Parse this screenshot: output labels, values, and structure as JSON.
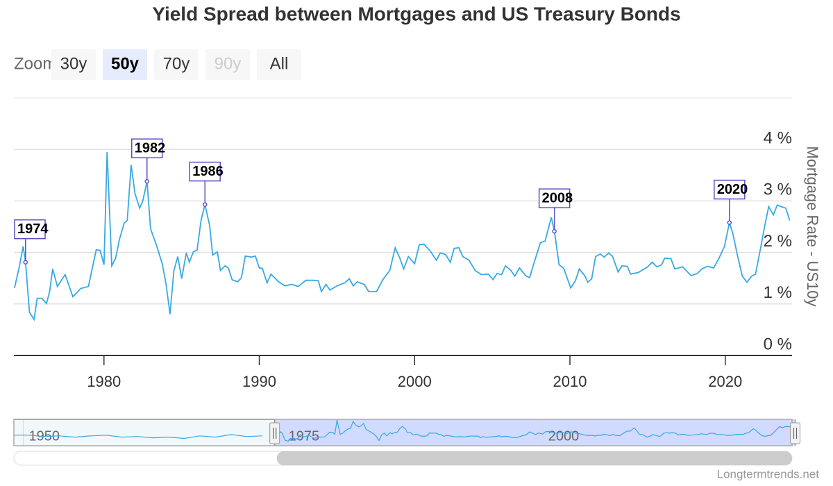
{
  "chart_data": {
    "type": "line",
    "title": "Yield Spread between Mortgages and US Treasury Bonds",
    "y_axis_label": "Mortgage Rate - US10y",
    "credit": "Longtermtrends.net",
    "color": "#38a9e4",
    "grid": true,
    "xlim": [
      1974.2,
      2024.3
    ],
    "xticks": [
      1980,
      1990,
      2000,
      2010,
      2020
    ],
    "ylim": [
      0,
      5
    ],
    "yticks": [
      {
        "value": 0,
        "label": "0 %"
      },
      {
        "value": 1,
        "label": "1 %"
      },
      {
        "value": 2,
        "label": "2 %"
      },
      {
        "value": 3,
        "label": "3 %"
      },
      {
        "value": 4,
        "label": "4 %"
      }
    ],
    "x": [
      1974.24,
      1974.55,
      1974.8,
      1974.95,
      1975.2,
      1975.5,
      1975.7,
      1976.0,
      1976.3,
      1976.5,
      1976.7,
      1977.0,
      1977.5,
      1978.0,
      1978.5,
      1979.0,
      1979.5,
      1979.75,
      1980.0,
      1980.2,
      1980.5,
      1980.75,
      1981.0,
      1981.3,
      1981.5,
      1981.75,
      1982.0,
      1982.3,
      1982.5,
      1982.77,
      1983.0,
      1983.4,
      1983.75,
      1984.0,
      1984.25,
      1984.5,
      1984.75,
      1985.0,
      1985.3,
      1985.5,
      1985.75,
      1986.0,
      1986.25,
      1986.5,
      1986.8,
      1987.0,
      1987.3,
      1987.5,
      1987.8,
      1988.0,
      1988.25,
      1988.6,
      1988.85,
      1989.1,
      1989.5,
      1989.75,
      1990.0,
      1990.2,
      1990.5,
      1990.75,
      1991.25,
      1991.65,
      1992.1,
      1992.5,
      1993.0,
      1993.5,
      1993.8,
      1994.0,
      1994.3,
      1994.55,
      1995.0,
      1995.5,
      1995.8,
      1996.05,
      1996.3,
      1996.75,
      1997.05,
      1997.55,
      1997.95,
      1998.4,
      1998.75,
      1999.05,
      1999.3,
      1999.6,
      2000.0,
      2000.3,
      2000.6,
      2001.0,
      2001.4,
      2001.65,
      2002.0,
      2002.3,
      2002.55,
      2002.85,
      2003.1,
      2003.5,
      2003.9,
      2004.3,
      2004.75,
      2005.05,
      2005.3,
      2005.6,
      2005.85,
      2006.2,
      2006.45,
      2006.75,
      2007.15,
      2007.4,
      2007.7,
      2008.1,
      2008.4,
      2008.8,
      2009.0,
      2009.3,
      2009.6,
      2010.05,
      2010.35,
      2010.6,
      2010.95,
      2011.15,
      2011.4,
      2011.65,
      2011.95,
      2012.2,
      2012.5,
      2012.75,
      2013.1,
      2013.35,
      2013.7,
      2013.9,
      2014.4,
      2015.0,
      2015.3,
      2015.6,
      2015.9,
      2016.1,
      2016.5,
      2016.75,
      2017.25,
      2017.8,
      2018.2,
      2018.5,
      2018.85,
      2019.25,
      2019.6,
      2019.95,
      2020.27,
      2020.5,
      2020.8,
      2021.1,
      2021.4,
      2021.7,
      2021.95,
      2022.3,
      2022.55,
      2022.8,
      2023.1,
      2023.35,
      2023.6,
      2023.9,
      2024.15
    ],
    "values": [
      1.31,
      1.72,
      2.12,
      1.81,
      0.84,
      0.7,
      1.11,
      1.11,
      1.01,
      1.24,
      1.68,
      1.34,
      1.57,
      1.14,
      1.3,
      1.34,
      2.05,
      2.04,
      1.76,
      3.95,
      1.74,
      1.89,
      2.26,
      2.57,
      2.62,
      3.7,
      3.14,
      2.86,
      3.0,
      3.38,
      2.46,
      2.12,
      1.78,
      1.38,
      0.8,
      1.65,
      1.92,
      1.49,
      1.99,
      1.81,
      2.01,
      2.05,
      2.62,
      2.93,
      2.53,
      1.95,
      2.01,
      1.65,
      1.74,
      1.7,
      1.47,
      1.43,
      1.51,
      1.93,
      1.91,
      1.93,
      1.7,
      1.69,
      1.41,
      1.58,
      1.43,
      1.35,
      1.38,
      1.34,
      1.46,
      1.46,
      1.45,
      1.24,
      1.38,
      1.27,
      1.35,
      1.41,
      1.49,
      1.35,
      1.43,
      1.38,
      1.24,
      1.24,
      1.47,
      1.65,
      2.09,
      1.89,
      1.68,
      1.92,
      1.78,
      2.15,
      2.16,
      2.03,
      1.85,
      1.99,
      1.96,
      1.81,
      2.08,
      2.09,
      1.92,
      1.85,
      1.65,
      1.57,
      1.58,
      1.47,
      1.59,
      1.57,
      1.74,
      1.65,
      1.54,
      1.7,
      1.55,
      1.51,
      1.81,
      2.19,
      2.22,
      2.68,
      2.41,
      1.76,
      1.69,
      1.31,
      1.45,
      1.68,
      1.55,
      1.42,
      1.49,
      1.92,
      1.97,
      1.91,
      1.99,
      1.92,
      1.62,
      1.74,
      1.73,
      1.58,
      1.61,
      1.72,
      1.81,
      1.72,
      1.76,
      1.89,
      1.88,
      1.68,
      1.72,
      1.55,
      1.59,
      1.68,
      1.73,
      1.7,
      1.89,
      2.12,
      2.58,
      2.35,
      1.92,
      1.54,
      1.42,
      1.54,
      1.58,
      2.12,
      2.53,
      2.89,
      2.73,
      2.92,
      2.89,
      2.86,
      2.62
    ],
    "flags": [
      {
        "label": "1974",
        "x": 1974.95,
        "value": 1.81
      },
      {
        "label": "1982",
        "x": 1982.77,
        "value": 3.38
      },
      {
        "label": "1986",
        "x": 1986.5,
        "value": 2.93
      },
      {
        "label": "2008",
        "x": 2009.0,
        "value": 2.41
      },
      {
        "label": "2020",
        "x": 2020.27,
        "value": 2.58
      }
    ],
    "zoom": {
      "label": "Zoom",
      "buttons": [
        "30y",
        "50y",
        "70y",
        "90y",
        "All"
      ],
      "selected": 1,
      "disabled": [
        3
      ]
    },
    "navigator": {
      "xlim": [
        1949.1,
        2024.0
      ],
      "xticks": [
        1950,
        1975,
        2000
      ],
      "ylim": [
        0,
        4
      ],
      "x": [
        1949.1,
        1950.5,
        1952,
        1953.5,
        1955,
        1956.5,
        1958,
        1959.5,
        1961,
        1962.5,
        1964,
        1965.5,
        1967,
        1968.5,
        1970,
        1971.5,
        1973
      ],
      "values": [
        1.6,
        1.6,
        1.4,
        1.5,
        1.3,
        1.5,
        1.6,
        1.3,
        1.4,
        1.2,
        1.3,
        1.1,
        1.5,
        1.3,
        1.7,
        1.4,
        1.5
      ]
    }
  }
}
